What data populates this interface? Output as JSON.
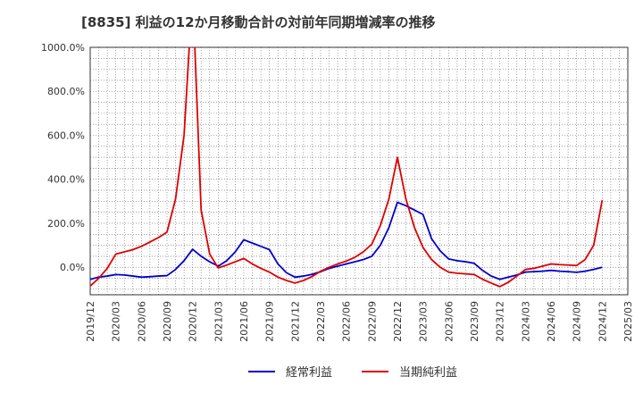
{
  "chart_data": {
    "type": "line",
    "title": "[8835]  利益の12か月移動合計の対前年同期増減率の推移",
    "xlabel": "",
    "ylabel": "",
    "x_ticks": [
      "2019/12",
      "2020/03",
      "2020/06",
      "2020/09",
      "2020/12",
      "2021/03",
      "2021/06",
      "2021/09",
      "2021/12",
      "2022/03",
      "2022/06",
      "2022/09",
      "2022/12",
      "2023/03",
      "2023/06",
      "2023/09",
      "2023/12",
      "2024/03",
      "2024/06",
      "2024/09",
      "2024/12",
      "2025/03"
    ],
    "y_ticks": [
      "0.0%",
      "200.0%",
      "400.0%",
      "600.0%",
      "800.0%",
      "1000.0%"
    ],
    "y_tick_values": [
      0,
      200,
      400,
      600,
      800,
      1000
    ],
    "ylim": [
      -125,
      1000
    ],
    "xlim": [
      "2019/12",
      "2025/03"
    ],
    "grid": true,
    "legend_position": "bottom",
    "series": [
      {
        "name": "経常利益",
        "color": "#0000cc",
        "points": [
          [
            "2019/12",
            -55
          ],
          [
            "2020/01",
            -45
          ],
          [
            "2020/02",
            -40
          ],
          [
            "2020/03",
            -33
          ],
          [
            "2020/04",
            -35
          ],
          [
            "2020/05",
            -40
          ],
          [
            "2020/06",
            -45
          ],
          [
            "2020/07",
            -43
          ],
          [
            "2020/08",
            -40
          ],
          [
            "2020/09",
            -38
          ],
          [
            "2020/10",
            -10
          ],
          [
            "2020/11",
            30
          ],
          [
            "2020/12",
            82
          ],
          [
            "2021/01",
            50
          ],
          [
            "2021/02",
            25
          ],
          [
            "2021/03",
            5
          ],
          [
            "2021/04",
            30
          ],
          [
            "2021/05",
            70
          ],
          [
            "2021/06",
            125
          ],
          [
            "2021/07",
            110
          ],
          [
            "2021/08",
            95
          ],
          [
            "2021/09",
            80
          ],
          [
            "2021/10",
            15
          ],
          [
            "2021/11",
            -25
          ],
          [
            "2021/12",
            -45
          ],
          [
            "2022/01",
            -40
          ],
          [
            "2022/02",
            -32
          ],
          [
            "2022/03",
            -20
          ],
          [
            "2022/04",
            -5
          ],
          [
            "2022/05",
            5
          ],
          [
            "2022/06",
            15
          ],
          [
            "2022/07",
            25
          ],
          [
            "2022/08",
            35
          ],
          [
            "2022/09",
            50
          ],
          [
            "2022/10",
            100
          ],
          [
            "2022/11",
            180
          ],
          [
            "2022/12",
            295
          ],
          [
            "2023/01",
            280
          ],
          [
            "2023/02",
            260
          ],
          [
            "2023/03",
            240
          ],
          [
            "2023/04",
            130
          ],
          [
            "2023/05",
            75
          ],
          [
            "2023/06",
            38
          ],
          [
            "2023/07",
            30
          ],
          [
            "2023/08",
            25
          ],
          [
            "2023/09",
            18
          ],
          [
            "2023/10",
            -15
          ],
          [
            "2023/11",
            -40
          ],
          [
            "2023/12",
            -55
          ],
          [
            "2024/01",
            -45
          ],
          [
            "2024/02",
            -35
          ],
          [
            "2024/03",
            -22
          ],
          [
            "2024/04",
            -20
          ],
          [
            "2024/05",
            -18
          ],
          [
            "2024/06",
            -14
          ],
          [
            "2024/07",
            -18
          ],
          [
            "2024/08",
            -20
          ],
          [
            "2024/09",
            -23
          ],
          [
            "2024/10",
            -18
          ],
          [
            "2024/11",
            -10
          ],
          [
            "2024/12",
            0
          ]
        ]
      },
      {
        "name": "当期純利益",
        "color": "#dd0000",
        "points": [
          [
            "2019/12",
            -85
          ],
          [
            "2020/01",
            -50
          ],
          [
            "2020/02",
            -5
          ],
          [
            "2020/03",
            60
          ],
          [
            "2020/04",
            70
          ],
          [
            "2020/05",
            80
          ],
          [
            "2020/06",
            95
          ],
          [
            "2020/07",
            115
          ],
          [
            "2020/08",
            135
          ],
          [
            "2020/09",
            160
          ],
          [
            "2020/10",
            310
          ],
          [
            "2020/11",
            600
          ],
          [
            "2020/12",
            1260
          ],
          [
            "2021/01",
            260
          ],
          [
            "2021/02",
            60
          ],
          [
            "2021/03",
            -3
          ],
          [
            "2021/04",
            10
          ],
          [
            "2021/05",
            25
          ],
          [
            "2021/06",
            40
          ],
          [
            "2021/07",
            15
          ],
          [
            "2021/08",
            -5
          ],
          [
            "2021/09",
            -22
          ],
          [
            "2021/10",
            -45
          ],
          [
            "2021/11",
            -60
          ],
          [
            "2021/12",
            -72
          ],
          [
            "2022/01",
            -60
          ],
          [
            "2022/02",
            -42
          ],
          [
            "2022/03",
            -18
          ],
          [
            "2022/04",
            0
          ],
          [
            "2022/05",
            15
          ],
          [
            "2022/06",
            28
          ],
          [
            "2022/07",
            45
          ],
          [
            "2022/08",
            70
          ],
          [
            "2022/09",
            105
          ],
          [
            "2022/10",
            190
          ],
          [
            "2022/11",
            310
          ],
          [
            "2022/12",
            500
          ],
          [
            "2023/01",
            310
          ],
          [
            "2023/02",
            180
          ],
          [
            "2023/03",
            90
          ],
          [
            "2023/04",
            35
          ],
          [
            "2023/05",
            0
          ],
          [
            "2023/06",
            -22
          ],
          [
            "2023/07",
            -27
          ],
          [
            "2023/08",
            -30
          ],
          [
            "2023/09",
            -33
          ],
          [
            "2023/10",
            -55
          ],
          [
            "2023/11",
            -72
          ],
          [
            "2023/12",
            -88
          ],
          [
            "2024/01",
            -68
          ],
          [
            "2024/02",
            -40
          ],
          [
            "2024/03",
            -10
          ],
          [
            "2024/04",
            -5
          ],
          [
            "2024/05",
            5
          ],
          [
            "2024/06",
            15
          ],
          [
            "2024/07",
            12
          ],
          [
            "2024/08",
            10
          ],
          [
            "2024/09",
            8
          ],
          [
            "2024/10",
            35
          ],
          [
            "2024/11",
            100
          ],
          [
            "2024/12",
            305
          ]
        ]
      }
    ]
  }
}
